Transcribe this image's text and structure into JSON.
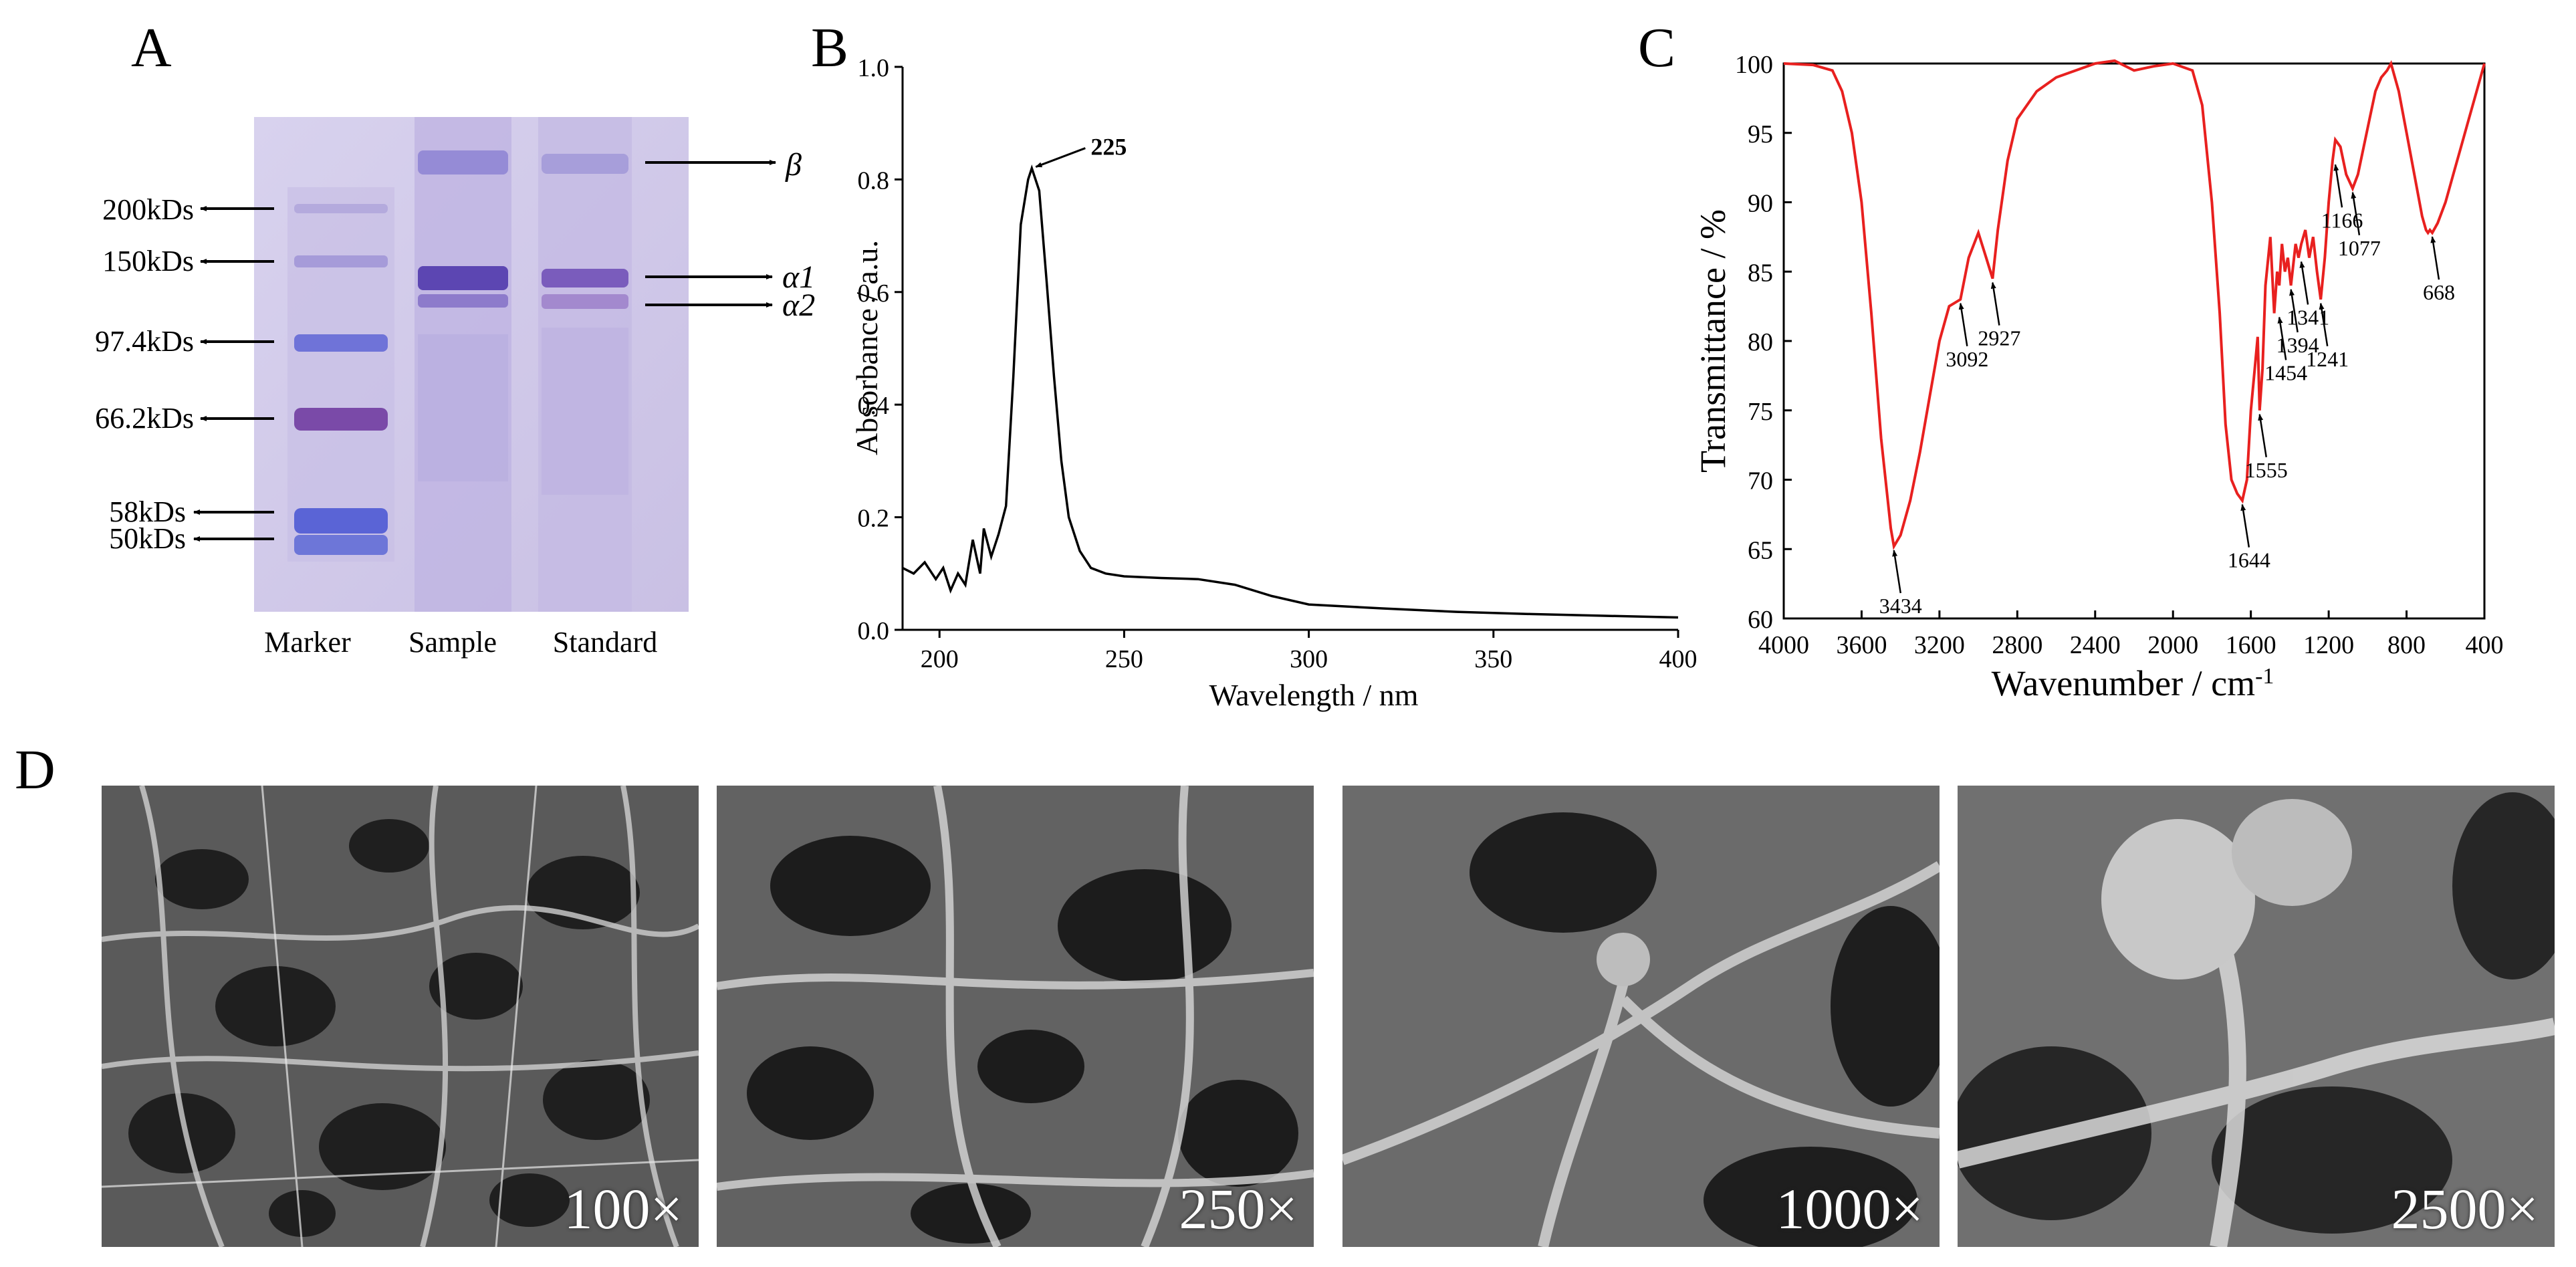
{
  "panels": {
    "A": {
      "label": "A",
      "markers": [
        "200kDs",
        "150kDs",
        "97.4kDs",
        "66.2kDs",
        "58kDs",
        "50kDs"
      ],
      "lanes": [
        "Marker",
        "Sample",
        "Standard"
      ],
      "band_labels": [
        "β",
        "α1",
        "α2"
      ]
    },
    "B": {
      "label": "B"
    },
    "C": {
      "label": "C"
    },
    "D": {
      "label": "D",
      "magnifications": [
        "100×",
        "250×",
        "1000×",
        "2500×"
      ]
    }
  },
  "colors": {
    "ftir_line": "#e8201f",
    "uv_line": "#000000",
    "gel_bg": "#cfc7e6",
    "band": "#6a5ac8"
  },
  "chart_data": [
    {
      "type": "line",
      "panel": "B",
      "xlabel": "Wavelength / nm",
      "ylabel": "Absorbance / a.u.",
      "xlim": [
        190,
        400
      ],
      "ylim": [
        0,
        1.0
      ],
      "xticks": [
        "200",
        "250",
        "300",
        "350",
        "400"
      ],
      "yticks": [
        "0.0",
        "0.2",
        "0.4",
        "0.6",
        "0.8",
        "1.0"
      ],
      "series": [
        {
          "x": [
            190,
            193,
            196,
            199,
            201,
            203,
            205,
            207,
            209,
            211,
            212,
            214,
            216,
            218,
            220,
            222,
            224,
            225,
            227,
            229,
            231,
            233,
            235,
            238,
            241,
            245,
            250,
            260,
            270,
            280,
            290,
            300,
            320,
            340,
            360,
            380,
            400
          ],
          "y": [
            0.11,
            0.1,
            0.12,
            0.09,
            0.11,
            0.07,
            0.1,
            0.08,
            0.16,
            0.1,
            0.18,
            0.13,
            0.17,
            0.22,
            0.45,
            0.72,
            0.8,
            0.82,
            0.78,
            0.62,
            0.45,
            0.3,
            0.2,
            0.14,
            0.11,
            0.1,
            0.095,
            0.092,
            0.09,
            0.08,
            0.06,
            0.045,
            0.038,
            0.032,
            0.028,
            0.025,
            0.022
          ]
        }
      ],
      "annotations": [
        {
          "x": 225,
          "y": 0.82,
          "text": "225"
        }
      ]
    },
    {
      "type": "line",
      "panel": "C",
      "xlabel": "Wavenumber / cm",
      "xlabel_sup": "-1",
      "ylabel": "Transmittance / %",
      "xlim": [
        4000,
        400
      ],
      "ylim": [
        60,
        100
      ],
      "xticks": [
        "4000",
        "3600",
        "3200",
        "2800",
        "2400",
        "2000",
        "1600",
        "1200",
        "800",
        "400"
      ],
      "yticks": [
        "60",
        "65",
        "70",
        "75",
        "80",
        "85",
        "90",
        "95",
        "100"
      ],
      "series": [
        {
          "x": [
            4000,
            3850,
            3750,
            3700,
            3650,
            3600,
            3550,
            3500,
            3450,
            3434,
            3400,
            3350,
            3300,
            3250,
            3200,
            3150,
            3092,
            3050,
            3000,
            2960,
            2927,
            2900,
            2850,
            2800,
            2700,
            2600,
            2500,
            2400,
            2300,
            2200,
            2100,
            2000,
            1900,
            1850,
            1800,
            1760,
            1730,
            1700,
            1670,
            1644,
            1620,
            1600,
            1580,
            1565,
            1555,
            1540,
            1525,
            1500,
            1480,
            1465,
            1454,
            1440,
            1425,
            1410,
            1394,
            1370,
            1355,
            1341,
            1320,
            1300,
            1280,
            1260,
            1241,
            1220,
            1200,
            1180,
            1166,
            1140,
            1110,
            1077,
            1050,
            1020,
            990,
            960,
            930,
            900,
            880,
            860,
            840,
            800,
            760,
            720,
            700,
            690,
            680,
            668,
            640,
            600,
            560,
            520,
            480,
            440,
            400
          ],
          "y": [
            100,
            99.9,
            99.5,
            98,
            95,
            90,
            82,
            73,
            66.5,
            65.2,
            66,
            68.5,
            72,
            76,
            80,
            82.5,
            83,
            86,
            87.8,
            86,
            84.5,
            88,
            93,
            96,
            98,
            99,
            99.5,
            100,
            100.2,
            99.5,
            99.8,
            100,
            99.5,
            97,
            90,
            82,
            74,
            70,
            69,
            68.5,
            70,
            75,
            78,
            80.3,
            75,
            78,
            84,
            87.5,
            82,
            85,
            84,
            87,
            85,
            86,
            84,
            87,
            86,
            87,
            88,
            86,
            87.5,
            85,
            83,
            86,
            90,
            93,
            94.5,
            94,
            92,
            91,
            92,
            94,
            96,
            98,
            99,
            99.5,
            100,
            99,
            98,
            95,
            92,
            89,
            88,
            87.8,
            88,
            87.8,
            88.5,
            90,
            92,
            94,
            96,
            98,
            100
          ]
        }
      ],
      "annotations": [
        {
          "x": 3434,
          "y": 65.2,
          "text": "3434"
        },
        {
          "x": 3092,
          "y": 83,
          "text": "3092"
        },
        {
          "x": 2927,
          "y": 84.5,
          "text": "2927"
        },
        {
          "x": 1644,
          "y": 68.5,
          "text": "1644"
        },
        {
          "x": 1555,
          "y": 75,
          "text": "1555"
        },
        {
          "x": 1454,
          "y": 82,
          "text": "1454"
        },
        {
          "x": 1394,
          "y": 84,
          "text": "1394"
        },
        {
          "x": 1341,
          "y": 86,
          "text": "1341"
        },
        {
          "x": 1241,
          "y": 83,
          "text": "1241"
        },
        {
          "x": 1166,
          "y": 93,
          "text": "1166"
        },
        {
          "x": 1077,
          "y": 91,
          "text": "1077"
        },
        {
          "x": 668,
          "y": 87.8,
          "text": "668"
        }
      ]
    }
  ]
}
